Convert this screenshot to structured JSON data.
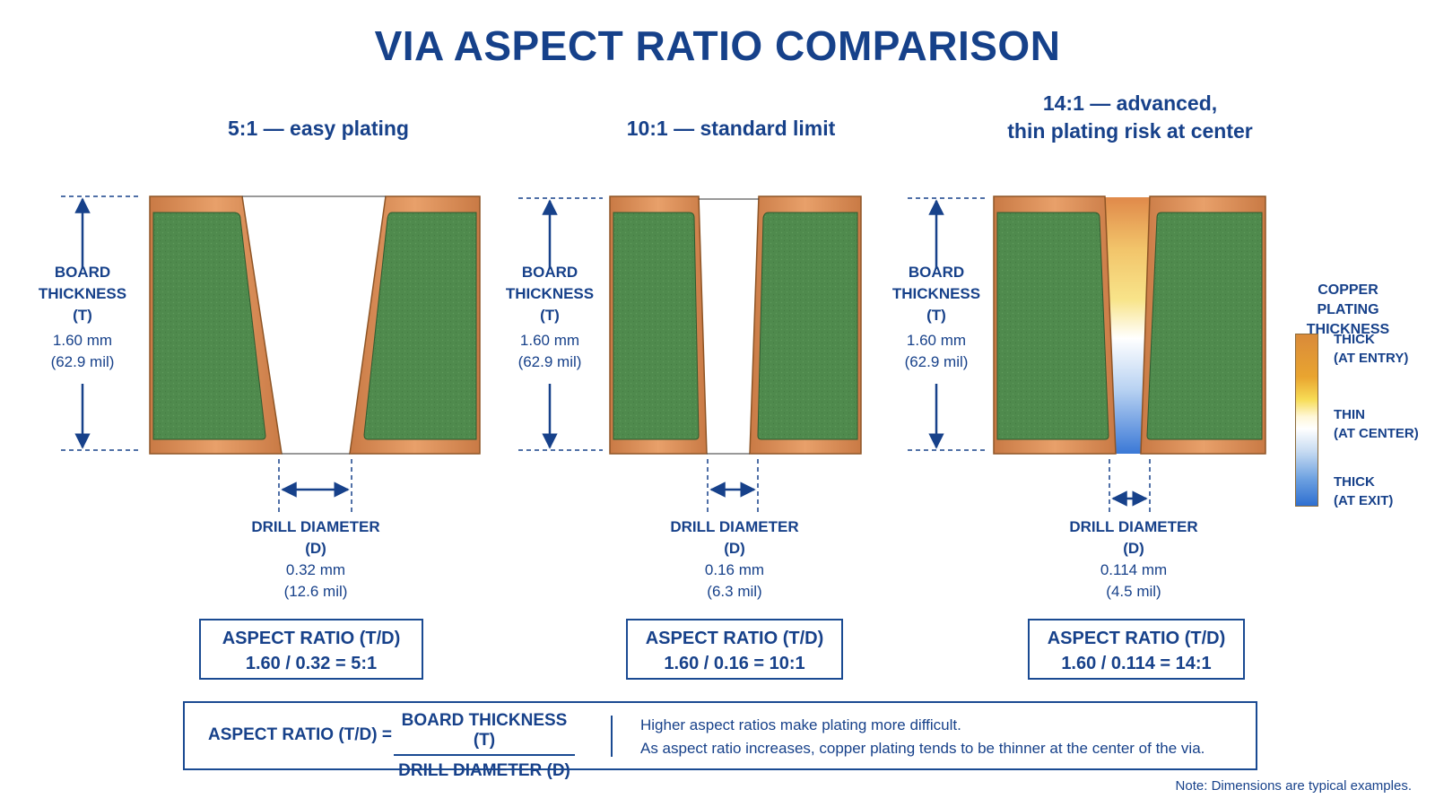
{
  "title": "VIA ASPECT RATIO COMPARISON",
  "vias": [
    {
      "heading": [
        "5:1 — easy plating"
      ],
      "board_thickness": {
        "label1": "BOARD",
        "label2": "THICKNESS",
        "sym": "(T)",
        "mm": "1.60 mm",
        "mil": "(62.9 mil)"
      },
      "drill": {
        "label": "DRILL DIAMETER",
        "sym": "(D)",
        "mm": "0.32 mm",
        "mil": "(12.6 mil)"
      },
      "ratio_box": {
        "label": "ASPECT RATIO (T/D)",
        "formula": "1.60 / 0.32 = 5:1"
      }
    },
    {
      "heading": [
        "10:1 — standard limit"
      ],
      "board_thickness": {
        "label1": "BOARD",
        "label2": "THICKNESS",
        "sym": "(T)",
        "mm": "1.60 mm",
        "mil": "(62.9 mil)"
      },
      "drill": {
        "label": "DRILL DIAMETER",
        "sym": "(D)",
        "mm": "0.16 mm",
        "mil": "(6.3 mil)"
      },
      "ratio_box": {
        "label": "ASPECT RATIO (T/D)",
        "formula": "1.60 / 0.16 = 10:1"
      }
    },
    {
      "heading": [
        "14:1 — advanced,",
        "thin plating risk at center"
      ],
      "board_thickness": {
        "label1": "BOARD",
        "label2": "THICKNESS",
        "sym": "(T)",
        "mm": "1.60 mm",
        "mil": "(62.9 mil)"
      },
      "drill": {
        "label": "DRILL DIAMETER",
        "sym": "(D)",
        "mm": "0.114 mm",
        "mil": "(4.5 mil)"
      },
      "ratio_box": {
        "label": "ASPECT RATIO (T/D)",
        "formula": "1.60 / 0.114 = 14:1"
      }
    }
  ],
  "legend": {
    "title1": "COPPER PLATING",
    "title2": "THICKNESS",
    "thick_entry": [
      "THICK",
      "(AT ENTRY)"
    ],
    "thin_center": [
      "THIN",
      "(AT CENTER)"
    ],
    "thick_exit": [
      "THICK",
      "(AT EXIT)"
    ]
  },
  "formula": {
    "lhs": "ASPECT RATIO (T/D) =",
    "numerator": "BOARD THICKNESS (T)",
    "denominator": "DRILL DIAMETER (D)",
    "note1": "Higher aspect ratios make plating more difficult.",
    "note2": "As aspect ratio increases, copper plating tends to be thinner at the center of the via."
  },
  "footnote": "Note: Dimensions are typical examples.",
  "colors": {
    "text": "#17418a",
    "board_green": "#4f8a4d",
    "copper": "#d98a4e",
    "copper_dark": "#9c5a2a"
  }
}
